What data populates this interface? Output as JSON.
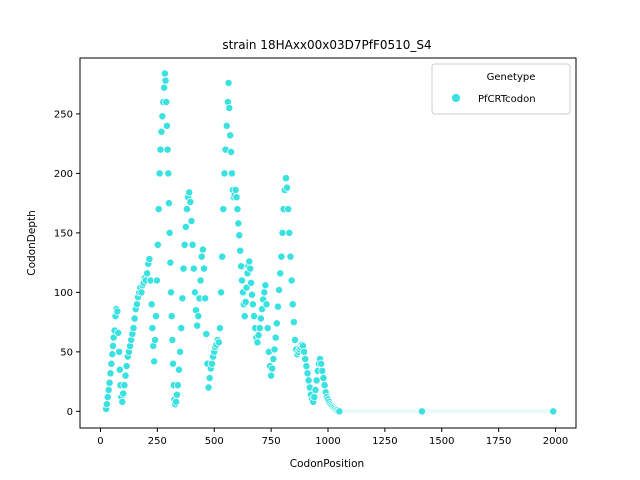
{
  "chart_data": {
    "type": "scatter",
    "title": "strain 18HAxx00x03D7PfF0510_S4",
    "xlabel": "CodonPosition",
    "ylabel": "CodonDepth",
    "xlim": [
      -90,
      2090
    ],
    "ylim": [
      -14,
      297
    ],
    "x_ticks": [
      0,
      250,
      500,
      750,
      1000,
      1250,
      1500,
      1750,
      2000
    ],
    "y_ticks": [
      0,
      50,
      100,
      150,
      200,
      250
    ],
    "grid": false,
    "legend": {
      "title": "Genetype",
      "placement": "top-right",
      "entries": [
        "PfCRTcodon"
      ]
    },
    "series": [
      {
        "name": "PfCRTcodon",
        "color": "#3ae1e1",
        "points": [
          [
            25,
            2
          ],
          [
            28,
            6
          ],
          [
            32,
            12
          ],
          [
            36,
            18
          ],
          [
            40,
            24
          ],
          [
            44,
            32
          ],
          [
            48,
            40
          ],
          [
            52,
            48
          ],
          [
            55,
            55
          ],
          [
            58,
            62
          ],
          [
            62,
            68
          ],
          [
            66,
            80
          ],
          [
            70,
            86
          ],
          [
            74,
            84
          ],
          [
            78,
            66
          ],
          [
            82,
            50
          ],
          [
            85,
            35
          ],
          [
            88,
            22
          ],
          [
            92,
            12
          ],
          [
            96,
            8
          ],
          [
            100,
            15
          ],
          [
            105,
            22
          ],
          [
            110,
            30
          ],
          [
            115,
            38
          ],
          [
            120,
            46
          ],
          [
            125,
            50
          ],
          [
            130,
            55
          ],
          [
            135,
            60
          ],
          [
            140,
            65
          ],
          [
            145,
            70
          ],
          [
            150,
            78
          ],
          [
            155,
            86
          ],
          [
            160,
            90
          ],
          [
            165,
            96
          ],
          [
            170,
            100
          ],
          [
            175,
            104
          ],
          [
            180,
            100
          ],
          [
            185,
            106
          ],
          [
            190,
            108
          ],
          [
            195,
            112
          ],
          [
            200,
            110
          ],
          [
            205,
            116
          ],
          [
            210,
            124
          ],
          [
            215,
            128
          ],
          [
            220,
            110
          ],
          [
            225,
            90
          ],
          [
            228,
            70
          ],
          [
            232,
            55
          ],
          [
            236,
            42
          ],
          [
            240,
            60
          ],
          [
            244,
            80
          ],
          [
            248,
            110
          ],
          [
            252,
            140
          ],
          [
            256,
            170
          ],
          [
            260,
            200
          ],
          [
            264,
            220
          ],
          [
            268,
            235
          ],
          [
            272,
            248
          ],
          [
            276,
            260
          ],
          [
            280,
            272
          ],
          [
            283,
            284
          ],
          [
            286,
            278
          ],
          [
            289,
            260
          ],
          [
            292,
            240
          ],
          [
            295,
            220
          ],
          [
            298,
            200
          ],
          [
            301,
            175
          ],
          [
            304,
            150
          ],
          [
            307,
            125
          ],
          [
            310,
            100
          ],
          [
            313,
            80
          ],
          [
            316,
            60
          ],
          [
            319,
            40
          ],
          [
            322,
            22
          ],
          [
            325,
            10
          ],
          [
            328,
            6
          ],
          [
            332,
            8
          ],
          [
            336,
            14
          ],
          [
            340,
            22
          ],
          [
            345,
            35
          ],
          [
            350,
            50
          ],
          [
            355,
            70
          ],
          [
            360,
            95
          ],
          [
            365,
            120
          ],
          [
            370,
            140
          ],
          [
            375,
            155
          ],
          [
            380,
            170
          ],
          [
            385,
            180
          ],
          [
            390,
            184
          ],
          [
            395,
            176
          ],
          [
            400,
            160
          ],
          [
            405,
            140
          ],
          [
            410,
            120
          ],
          [
            415,
            100
          ],
          [
            420,
            85
          ],
          [
            425,
            72
          ],
          [
            430,
            80
          ],
          [
            435,
            95
          ],
          [
            440,
            110
          ],
          [
            445,
            130
          ],
          [
            450,
            136
          ],
          [
            455,
            120
          ],
          [
            460,
            95
          ],
          [
            465,
            65
          ],
          [
            470,
            40
          ],
          [
            475,
            20
          ],
          [
            480,
            28
          ],
          [
            485,
            36
          ],
          [
            490,
            40
          ],
          [
            495,
            46
          ],
          [
            500,
            50
          ],
          [
            505,
            54
          ],
          [
            510,
            56
          ],
          [
            515,
            60
          ],
          [
            520,
            58
          ],
          [
            525,
            70
          ],
          [
            530,
            100
          ],
          [
            535,
            130
          ],
          [
            540,
            170
          ],
          [
            545,
            200
          ],
          [
            550,
            220
          ],
          [
            555,
            240
          ],
          [
            560,
            260
          ],
          [
            563,
            276
          ],
          [
            566,
            255
          ],
          [
            570,
            232
          ],
          [
            574,
            218
          ],
          [
            578,
            200
          ],
          [
            582,
            186
          ],
          [
            586,
            180
          ],
          [
            590,
            182
          ],
          [
            594,
            186
          ],
          [
            598,
            180
          ],
          [
            602,
            170
          ],
          [
            606,
            158
          ],
          [
            610,
            148
          ],
          [
            614,
            135
          ],
          [
            618,
            122
          ],
          [
            622,
            110
          ],
          [
            626,
            100
          ],
          [
            630,
            90
          ],
          [
            634,
            80
          ],
          [
            638,
            92
          ],
          [
            642,
            104
          ],
          [
            646,
            116
          ],
          [
            650,
            122
          ],
          [
            654,
            126
          ],
          [
            658,
            120
          ],
          [
            662,
            108
          ],
          [
            666,
            98
          ],
          [
            670,
            90
          ],
          [
            675,
            80
          ],
          [
            680,
            70
          ],
          [
            685,
            62
          ],
          [
            690,
            58
          ],
          [
            695,
            64
          ],
          [
            700,
            70
          ],
          [
            705,
            78
          ],
          [
            710,
            86
          ],
          [
            715,
            94
          ],
          [
            720,
            100
          ],
          [
            725,
            106
          ],
          [
            730,
            90
          ],
          [
            735,
            70
          ],
          [
            740,
            50
          ],
          [
            745,
            38
          ],
          [
            750,
            30
          ],
          [
            755,
            36
          ],
          [
            760,
            44
          ],
          [
            765,
            52
          ],
          [
            770,
            62
          ],
          [
            775,
            74
          ],
          [
            780,
            88
          ],
          [
            785,
            102
          ],
          [
            790,
            116
          ],
          [
            795,
            130
          ],
          [
            800,
            150
          ],
          [
            805,
            170
          ],
          [
            810,
            186
          ],
          [
            815,
            196
          ],
          [
            820,
            188
          ],
          [
            825,
            170
          ],
          [
            830,
            150
          ],
          [
            835,
            130
          ],
          [
            840,
            110
          ],
          [
            845,
            90
          ],
          [
            850,
            75
          ],
          [
            855,
            60
          ],
          [
            860,
            52
          ],
          [
            865,
            48
          ],
          [
            870,
            50
          ],
          [
            875,
            52
          ],
          [
            880,
            54
          ],
          [
            885,
            56
          ],
          [
            890,
            55
          ],
          [
            895,
            50
          ],
          [
            900,
            44
          ],
          [
            905,
            38
          ],
          [
            910,
            32
          ],
          [
            915,
            26
          ],
          [
            920,
            20
          ],
          [
            925,
            14
          ],
          [
            930,
            10
          ],
          [
            935,
            8
          ],
          [
            940,
            12
          ],
          [
            945,
            18
          ],
          [
            950,
            26
          ],
          [
            955,
            34
          ],
          [
            960,
            40
          ],
          [
            965,
            44
          ],
          [
            970,
            40
          ],
          [
            975,
            34
          ],
          [
            980,
            28
          ],
          [
            985,
            22
          ],
          [
            990,
            16
          ],
          [
            995,
            12
          ],
          [
            1000,
            10
          ],
          [
            1005,
            8
          ],
          [
            1010,
            6
          ],
          [
            1015,
            5
          ],
          [
            1020,
            4
          ],
          [
            1025,
            3
          ],
          [
            1030,
            2
          ],
          [
            1035,
            1
          ],
          [
            1040,
            1
          ],
          [
            1045,
            0
          ],
          [
            1050,
            0
          ],
          [
            1413,
            0
          ],
          [
            1990,
            0
          ]
        ]
      }
    ]
  }
}
